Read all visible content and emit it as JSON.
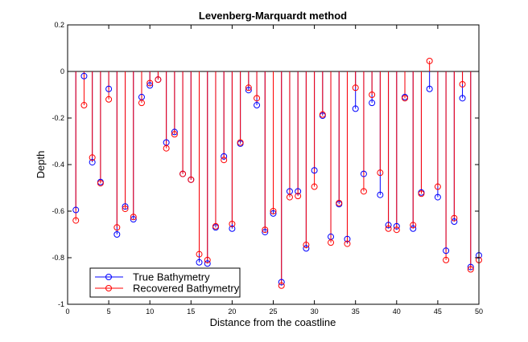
{
  "chart_data": {
    "type": "stem",
    "title": "Levenberg-Marquardt method",
    "xlabel": "Distance from the coastline",
    "ylabel": "Depth",
    "xlim": [
      0,
      50
    ],
    "ylim": [
      -1,
      0.2
    ],
    "xticks": [
      "0",
      "5",
      "10",
      "15",
      "20",
      "25",
      "30",
      "35",
      "40",
      "45",
      "50"
    ],
    "yticks": [
      "0.2",
      "0",
      "-0.2",
      "-0.4",
      "-0.6",
      "-0.8",
      "-1"
    ],
    "grid": false,
    "legend_position": "bottom-left",
    "x": [
      1,
      2,
      3,
      4,
      5,
      6,
      7,
      8,
      9,
      10,
      11,
      12,
      13,
      14,
      15,
      16,
      17,
      18,
      19,
      20,
      21,
      22,
      23,
      24,
      25,
      26,
      27,
      28,
      29,
      30,
      31,
      32,
      33,
      34,
      35,
      36,
      37,
      38,
      39,
      40,
      41,
      42,
      43,
      44,
      45,
      46,
      47,
      48,
      49,
      50
    ],
    "series": [
      {
        "name": "True Bathymetry",
        "color": "#0000ff",
        "values": [
          -0.595,
          -0.02,
          -0.39,
          -0.475,
          -0.075,
          -0.7,
          -0.58,
          -0.635,
          -0.11,
          -0.06,
          -0.035,
          -0.305,
          -0.26,
          -0.44,
          -0.465,
          -0.82,
          -0.825,
          -0.67,
          -0.365,
          -0.675,
          -0.31,
          -0.08,
          -0.145,
          -0.69,
          -0.61,
          -0.905,
          -0.515,
          -0.515,
          -0.76,
          -0.425,
          -0.19,
          -0.71,
          -0.57,
          -0.72,
          -0.16,
          -0.44,
          -0.135,
          -0.53,
          -0.66,
          -0.665,
          -0.11,
          -0.675,
          -0.52,
          -0.075,
          -0.54,
          -0.77,
          -0.645,
          -0.115,
          -0.84,
          -0.79
        ]
      },
      {
        "name": "Recovered Bathymetry",
        "color": "#ff0000",
        "values": [
          -0.64,
          -0.145,
          -0.37,
          -0.48,
          -0.12,
          -0.67,
          -0.59,
          -0.625,
          -0.135,
          -0.05,
          -0.035,
          -0.33,
          -0.27,
          -0.44,
          -0.465,
          -0.785,
          -0.81,
          -0.665,
          -0.38,
          -0.655,
          -0.305,
          -0.07,
          -0.115,
          -0.68,
          -0.6,
          -0.92,
          -0.54,
          -0.535,
          -0.745,
          -0.495,
          -0.185,
          -0.735,
          -0.565,
          -0.74,
          -0.07,
          -0.515,
          -0.1,
          -0.435,
          -0.675,
          -0.68,
          -0.115,
          -0.66,
          -0.525,
          0.045,
          -0.495,
          -0.81,
          -0.63,
          -0.055,
          -0.85,
          -0.81
        ]
      }
    ]
  }
}
